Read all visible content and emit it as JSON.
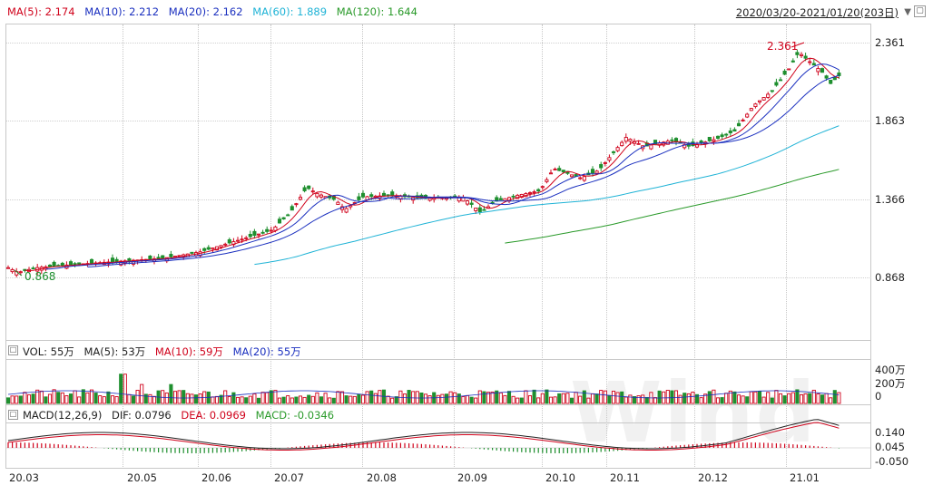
{
  "header": {
    "ma_items": [
      {
        "label": "MA(5): 2.174",
        "color": "#d0021b"
      },
      {
        "label": "MA(10): 2.212",
        "color": "#1a2fbf"
      },
      {
        "label": "MA(20): 2.162",
        "color": "#1a2fbf"
      },
      {
        "label": "MA(60): 1.889",
        "color": "#1fb3d6"
      },
      {
        "label": "MA(120): 1.644",
        "color": "#2a9a2a"
      }
    ],
    "date_range": "2020/03/20-2021/01/20(203日)"
  },
  "price_panel": {
    "y_ticks": [
      "2.361",
      "1.863",
      "1.366",
      "0.868"
    ],
    "high_label": "2.361",
    "low_label": "0.868"
  },
  "volume_panel": {
    "legend": [
      {
        "label": "VOL: 55万",
        "color": "#222222"
      },
      {
        "label": "MA(5): 53万",
        "color": "#222222"
      },
      {
        "label": "MA(10): 59万",
        "color": "#d0021b"
      },
      {
        "label": "MA(20): 55万",
        "color": "#1a2fbf"
      }
    ],
    "y_ticks": [
      "400万",
      "200万",
      "0"
    ]
  },
  "macd_panel": {
    "legend": [
      {
        "label": "MACD(12,26,9)",
        "color": "#222222"
      },
      {
        "label": "DIF: 0.0796",
        "color": "#222222"
      },
      {
        "label": "DEA: 0.0969",
        "color": "#d0021b"
      },
      {
        "label": "MACD: -0.0346",
        "color": "#2a9a2a"
      }
    ],
    "y_ticks": [
      "0.140",
      "0.045",
      "-0.050"
    ]
  },
  "x_axis": [
    "20.03",
    "20.05",
    "20.06",
    "20.07",
    "20.08",
    "20.09",
    "20.10",
    "20.11",
    "20.12",
    "21.01"
  ],
  "watermark": "Wind",
  "colors": {
    "up": "#d0021b",
    "down": "#1f8f2f"
  }
}
